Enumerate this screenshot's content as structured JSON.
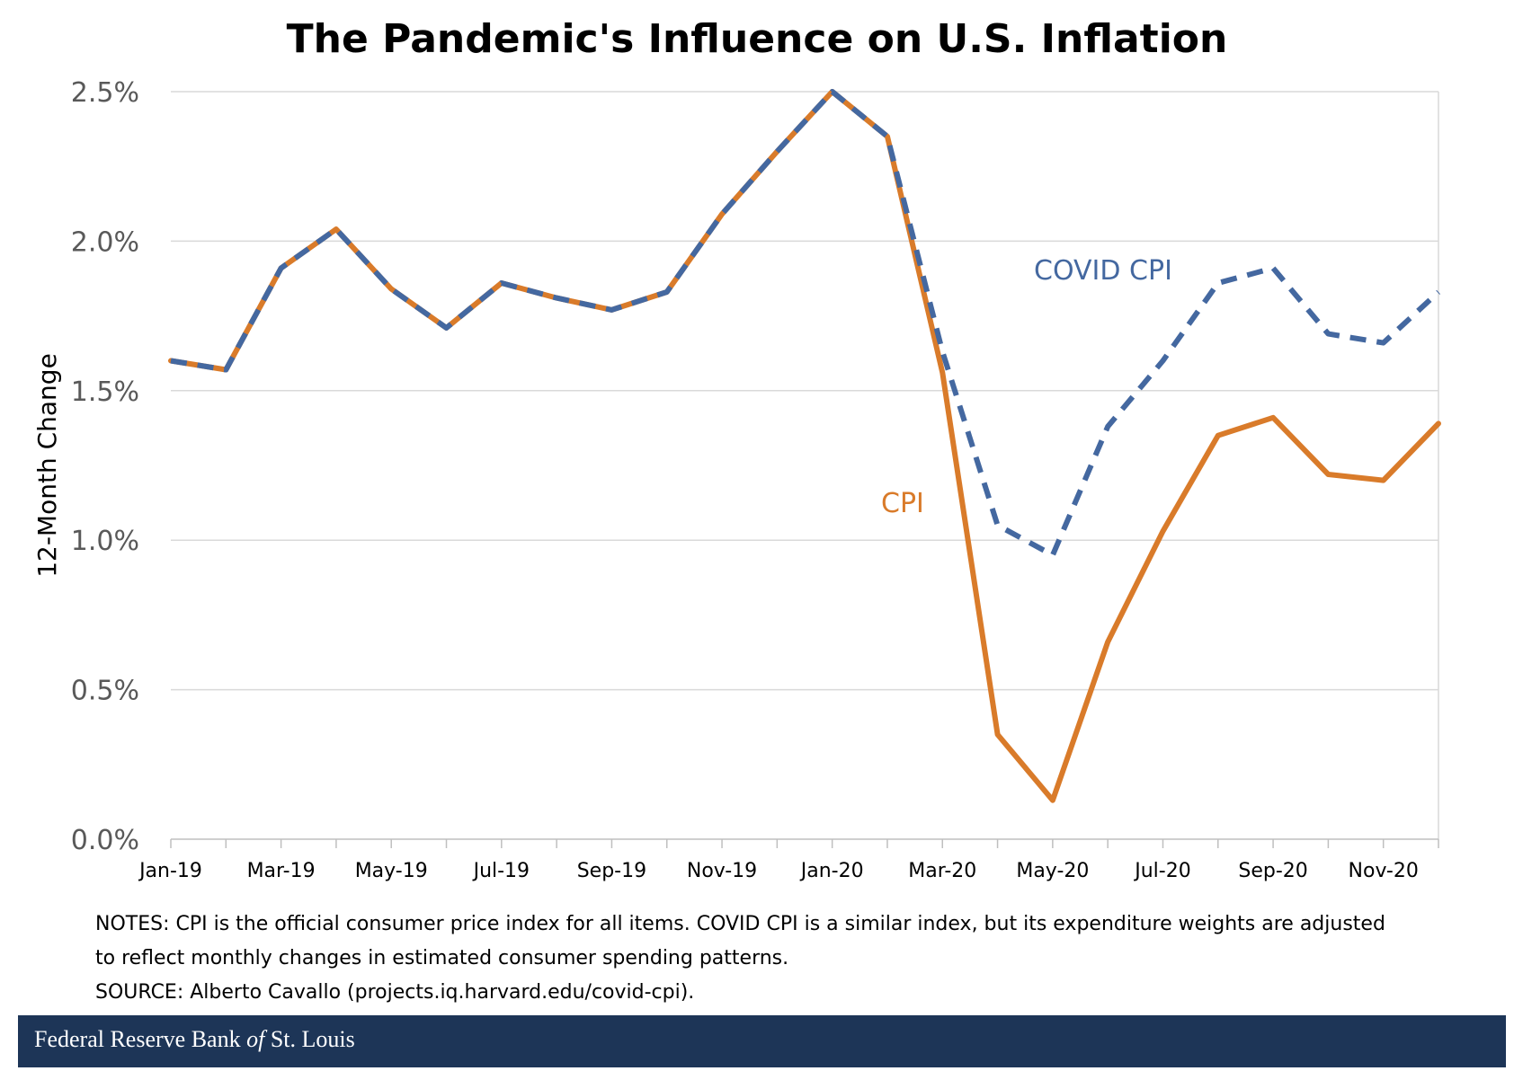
{
  "chart_data": {
    "type": "line",
    "title": "The Pandemic's Influence on U.S. Inflation",
    "ylabel": "12-Month Change",
    "xlabel": "",
    "ylim": [
      0,
      2.5
    ],
    "y_ticks": [
      "0.0%",
      "0.5%",
      "1.0%",
      "1.5%",
      "2.0%",
      "2.5%"
    ],
    "x": [
      "Jan-19",
      "Feb-19",
      "Mar-19",
      "Apr-19",
      "May-19",
      "Jun-19",
      "Jul-19",
      "Aug-19",
      "Sep-19",
      "Oct-19",
      "Nov-19",
      "Dec-19",
      "Jan-20",
      "Feb-20",
      "Mar-20",
      "Apr-20",
      "May-20",
      "Jun-20",
      "Jul-20",
      "Aug-20",
      "Sep-20",
      "Oct-20",
      "Nov-20",
      "Dec-20"
    ],
    "x_tick_labels": [
      "Jan-19",
      "Mar-19",
      "May-19",
      "Jul-19",
      "Sep-19",
      "Nov-19",
      "Jan-20",
      "Mar-20",
      "May-20",
      "Jul-20",
      "Sep-20",
      "Nov-20"
    ],
    "grid": true,
    "series": [
      {
        "name": "CPI",
        "color": "#d97b2a",
        "style": "solid",
        "values": [
          1.6,
          1.57,
          1.91,
          2.04,
          1.84,
          1.71,
          1.86,
          1.81,
          1.77,
          1.83,
          2.09,
          2.3,
          2.5,
          2.35,
          1.56,
          0.35,
          0.13,
          0.66,
          1.03,
          1.35,
          1.41,
          1.22,
          1.2,
          1.39
        ]
      },
      {
        "name": "COVID CPI",
        "color": "#4468a0",
        "style": "dashed",
        "values": [
          1.6,
          1.57,
          1.91,
          2.04,
          1.84,
          1.71,
          1.86,
          1.81,
          1.77,
          1.83,
          2.09,
          2.3,
          2.5,
          2.35,
          1.63,
          1.05,
          0.95,
          1.38,
          1.6,
          1.86,
          1.91,
          1.69,
          1.66,
          1.83
        ]
      }
    ],
    "annotations": [
      {
        "text": "COVID CPI",
        "color": "#4468a0"
      },
      {
        "text": "CPI",
        "color": "#d97b2a"
      }
    ]
  },
  "notes": {
    "line1": "NOTES: CPI is the official consumer price index for all items. COVID CPI is a similar index,  but its expenditure weights are  adjusted",
    "line2": "to reflect monthly  changes in estimated consumer spending patterns.",
    "line3": "SOURCE:  Alberto Cavallo (projects.iq.harvard.edu/covid-cpi)."
  },
  "footer": {
    "part1": "Federal Reserve Bank ",
    "part2": "of",
    "part3": " St. Louis"
  }
}
